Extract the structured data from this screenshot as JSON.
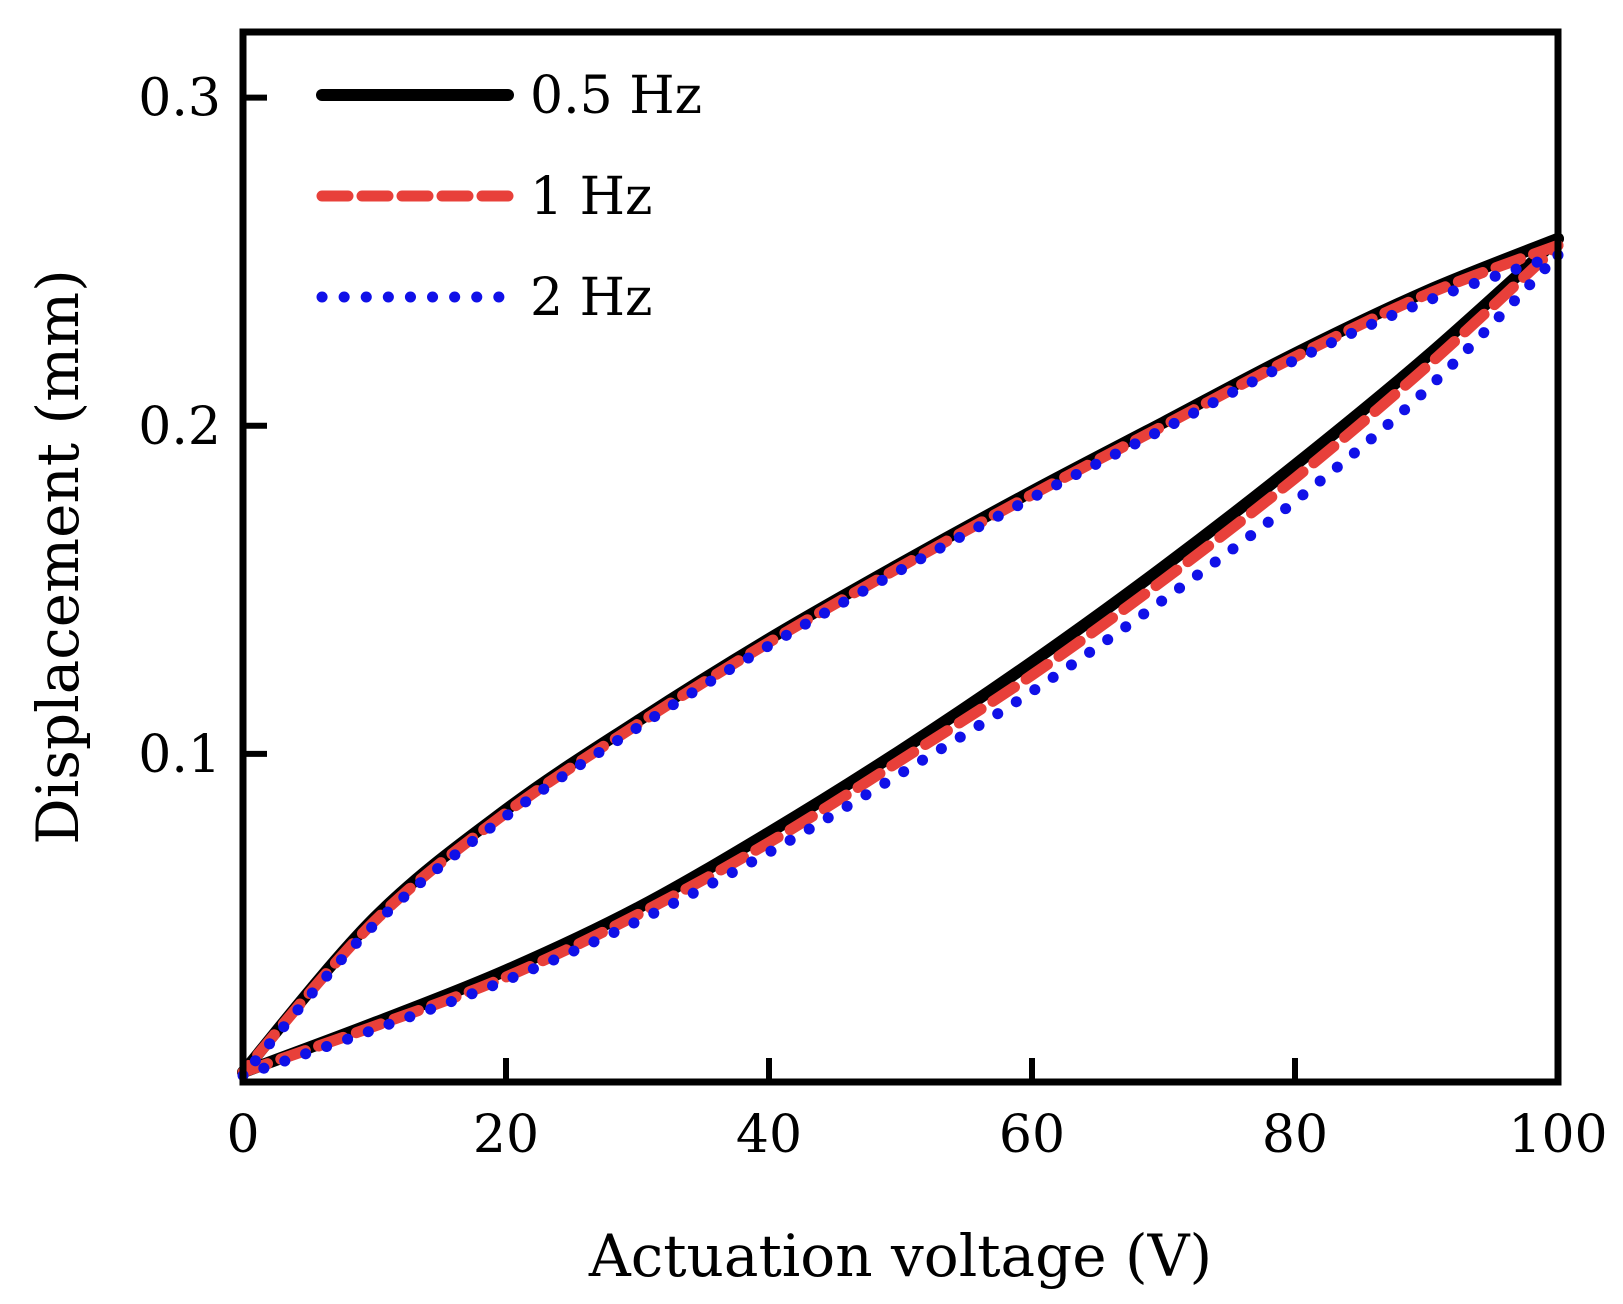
{
  "chart_data": {
    "type": "line",
    "title": "",
    "xlabel": "Actuation voltage (V)",
    "ylabel": "Displacement (mm)",
    "xlim": [
      0,
      100
    ],
    "ylim": [
      0,
      0.32
    ],
    "xticks": [
      0,
      20,
      40,
      60,
      80,
      100
    ],
    "xtick_labels": [
      "0",
      "20",
      "40",
      "60",
      "80",
      "100"
    ],
    "yticks": [
      0.1,
      0.2,
      0.3
    ],
    "ytick_labels": [
      "0.1",
      "0.2",
      "0.3"
    ],
    "grid": false,
    "legend_position": "top-left",
    "series": [
      {
        "name": "0.5 Hz",
        "color": "#000000",
        "style": "solid",
        "ascending": {
          "x": [
            0,
            10,
            20,
            30,
            40,
            50,
            60,
            70,
            80,
            90,
            100
          ],
          "y": [
            0.003,
            0.018,
            0.034,
            0.053,
            0.076,
            0.101,
            0.128,
            0.157,
            0.188,
            0.221,
            0.257
          ]
        },
        "descending": {
          "x": [
            100,
            90,
            80,
            70,
            60,
            50,
            40,
            30,
            20,
            10,
            0
          ],
          "y": [
            0.257,
            0.241,
            0.222,
            0.201,
            0.18,
            0.158,
            0.135,
            0.11,
            0.083,
            0.05,
            0.003
          ]
        }
      },
      {
        "name": "1 Hz",
        "color": "#e8403a",
        "style": "dashed",
        "ascending": {
          "x": [
            0,
            10,
            20,
            30,
            40,
            50,
            60,
            70,
            80,
            90,
            100
          ],
          "y": [
            0.003,
            0.017,
            0.032,
            0.051,
            0.073,
            0.098,
            0.124,
            0.153,
            0.184,
            0.218,
            0.255
          ]
        },
        "descending": {
          "x": [
            100,
            90,
            80,
            70,
            60,
            50,
            40,
            30,
            20,
            10,
            0
          ],
          "y": [
            0.255,
            0.24,
            0.221,
            0.2,
            0.179,
            0.157,
            0.134,
            0.109,
            0.082,
            0.049,
            0.003
          ]
        }
      },
      {
        "name": "2 Hz",
        "color": "#1010e8",
        "style": "dotted",
        "ascending": {
          "x": [
            0,
            10,
            20,
            30,
            40,
            50,
            60,
            70,
            80,
            90,
            100
          ],
          "y": [
            0.002,
            0.016,
            0.031,
            0.049,
            0.07,
            0.094,
            0.119,
            0.147,
            0.177,
            0.211,
            0.252
          ]
        },
        "descending": {
          "x": [
            100,
            90,
            80,
            70,
            60,
            50,
            40,
            30,
            20,
            10,
            0
          ],
          "y": [
            0.252,
            0.238,
            0.22,
            0.199,
            0.178,
            0.156,
            0.133,
            0.108,
            0.081,
            0.048,
            0.002
          ]
        }
      }
    ]
  }
}
